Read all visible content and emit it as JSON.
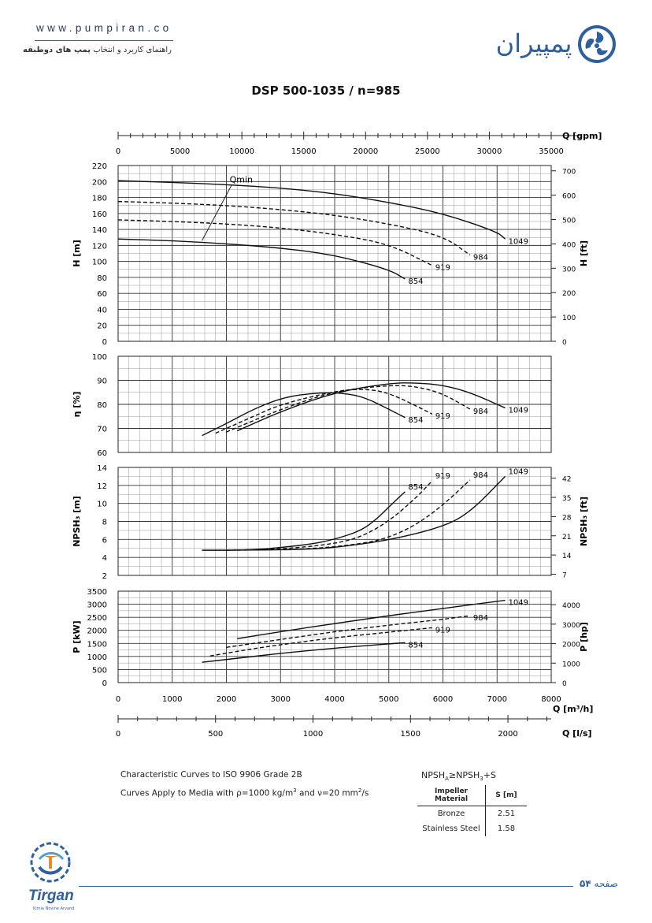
{
  "header": {
    "site_url": "www.pumpiran.co",
    "tagline_plain": "راهنمای کاربرد و انتخاب ",
    "tagline_bold": "پمپ های دوطبقه",
    "brand_name": "پمپیران"
  },
  "colors": {
    "accent": "#2f5f9c",
    "curve": "#111111",
    "grid": "#444444"
  },
  "chart_data": {
    "type": "line",
    "title": "DSP 500-1035 / n=985",
    "x_axes": {
      "gpm": {
        "label": "Q [gpm]",
        "range": [
          0,
          35000
        ],
        "ticks": [
          0,
          5000,
          10000,
          15000,
          20000,
          25000,
          30000,
          35000
        ]
      },
      "m3h": {
        "label": "Q [m³/h]",
        "range": [
          0,
          8000
        ],
        "ticks": [
          0,
          1000,
          2000,
          3000,
          4000,
          5000,
          6000,
          7000,
          8000
        ]
      },
      "ls": {
        "label": "Q [l/s]",
        "range": [
          0,
          2222
        ],
        "ticks": [
          0,
          500,
          1000,
          1500,
          2000
        ]
      }
    },
    "panels": [
      {
        "id": "head",
        "ylabel": "H [m]",
        "ylim": [
          0,
          220
        ],
        "yticks": [
          0,
          20,
          40,
          60,
          80,
          100,
          120,
          140,
          160,
          180,
          200,
          220
        ],
        "ylabel_right": "H [ft]",
        "yticks_right": [
          0,
          100,
          200,
          300,
          400,
          500,
          600,
          700
        ],
        "annotation": "Qmin",
        "series": [
          {
            "name": "1049",
            "dashed": false,
            "x": [
              0,
              1000,
              2000,
              3000,
              4000,
              5000,
              6000,
              7000,
              7150
            ],
            "y": [
              201,
              199,
              196,
              192,
              185,
              174,
              160,
              137,
              128
            ]
          },
          {
            "name": "984",
            "dashed": true,
            "x": [
              0,
              1000,
              2000,
              3000,
              4000,
              5000,
              6000,
              6500
            ],
            "y": [
              175,
              173,
              170,
              165,
              158,
              147,
              132,
              108
            ]
          },
          {
            "name": "919",
            "dashed": true,
            "x": [
              0,
              1000,
              2000,
              3000,
              4000,
              5000,
              5800
            ],
            "y": [
              152,
              150,
              147,
              142,
              134,
              122,
              95
            ]
          },
          {
            "name": "854",
            "dashed": false,
            "x": [
              0,
              1000,
              2000,
              3000,
              4000,
              5000,
              5300
            ],
            "y": [
              128,
              126,
              122,
              117,
              108,
              90,
              78
            ]
          }
        ]
      },
      {
        "id": "efficiency",
        "ylabel": "η [%]",
        "ylim": [
          60,
          100
        ],
        "yticks": [
          60,
          70,
          80,
          90,
          100
        ],
        "series": [
          {
            "name": "1049",
            "dashed": false,
            "x": [
              2200,
              3000,
              4000,
              5000,
              5500,
              6000,
              6500,
              7150
            ],
            "y": [
              69,
              77,
              85,
              88.8,
              89,
              88,
              85,
              78.5
            ]
          },
          {
            "name": "984",
            "dashed": true,
            "x": [
              2000,
              3000,
              4000,
              5000,
              5500,
              6000,
              6500
            ],
            "y": [
              68.5,
              78,
              85.5,
              88,
              87.5,
              84.5,
              78
            ]
          },
          {
            "name": "919",
            "dashed": true,
            "x": [
              1800,
              2500,
              3000,
              4000,
              4500,
              5000,
              5800
            ],
            "y": [
              68,
              75,
              80,
              85.5,
              86.5,
              85,
              76
            ]
          },
          {
            "name": "854",
            "dashed": false,
            "x": [
              1550,
              2000,
              2500,
              3000,
              3500,
              4000,
              4500,
              5000,
              5300
            ],
            "y": [
              67,
              72,
              78,
              82.5,
              84.5,
              85,
              83.5,
              78,
              74.5
            ]
          }
        ]
      },
      {
        "id": "npsh",
        "ylabel": "NPSH₃ [m]",
        "ylim": [
          2,
          14
        ],
        "yticks": [
          2,
          4,
          6,
          8,
          10,
          12,
          14
        ],
        "ylabel_right": "NPSH₃ [ft]",
        "yticks_right": [
          7,
          14,
          21,
          28,
          35,
          42
        ],
        "series": [
          {
            "name": "1049",
            "dashed": false,
            "x": [
              1550,
              2500,
              3500,
              4000,
              5000,
              6000,
              6500,
              7150
            ],
            "y": [
              4.8,
              4.8,
              4.9,
              5.1,
              5.9,
              7.4,
              9.0,
              13.0
            ]
          },
          {
            "name": "984",
            "dashed": true,
            "x": [
              2200,
              3500,
              4500,
              5000,
              5500,
              6000,
              6500
            ],
            "y": [
              4.8,
              4.9,
              5.5,
              6.2,
              7.6,
              9.8,
              12.6
            ]
          },
          {
            "name": "919",
            "dashed": true,
            "x": [
              2000,
              3000,
              4000,
              4500,
              5000,
              5500,
              5800
            ],
            "y": [
              4.8,
              4.9,
              5.5,
              6.3,
              8.0,
              10.6,
              12.5
            ]
          },
          {
            "name": "854",
            "dashed": false,
            "x": [
              1550,
              2500,
              3500,
              4000,
              4500,
              4800,
              5000,
              5300
            ],
            "y": [
              4.8,
              4.8,
              5.4,
              6.0,
              7.0,
              8.4,
              9.6,
              11.3
            ]
          }
        ]
      },
      {
        "id": "power",
        "ylabel": "P [kW]",
        "ylim": [
          0,
          3500
        ],
        "yticks": [
          0,
          500,
          1000,
          1500,
          2000,
          2500,
          3000,
          3500
        ],
        "ylabel_right": "P [hp]",
        "yticks_right": [
          0,
          1000,
          2000,
          3000,
          4000
        ],
        "series": [
          {
            "name": "1049",
            "dashed": false,
            "x": [
              2200,
              3000,
              4000,
              5000,
              6000,
              7150
            ],
            "y": [
              1680,
              1950,
              2260,
              2560,
              2840,
              3150
            ]
          },
          {
            "name": "984",
            "dashed": true,
            "x": [
              2000,
              3000,
              4000,
              5000,
              6000,
              6500
            ],
            "y": [
              1350,
              1650,
              1950,
              2200,
              2420,
              2560
            ]
          },
          {
            "name": "919",
            "dashed": true,
            "x": [
              1700,
              2500,
              3000,
              4000,
              5000,
              5800
            ],
            "y": [
              1020,
              1300,
              1450,
              1720,
              1930,
              2100
            ]
          },
          {
            "name": "854",
            "dashed": false,
            "x": [
              1550,
              2500,
              3000,
              4000,
              5000,
              5300
            ],
            "y": [
              780,
              1000,
              1120,
              1320,
              1480,
              1530
            ]
          }
        ]
      }
    ]
  },
  "notes": {
    "line1": "Characteristic Curves to ISO 9906 Grade 2B",
    "line2_a": "Curves Apply to Media with  ρ=1000 kg/m",
    "line2_b": "3",
    "line2_c": " and ν=20 mm",
    "line2_d": "2",
    "line2_e": "/s"
  },
  "npsh_margin": {
    "formula_a": "NPSH",
    "formula_sub_a": "A",
    "formula_b": "≥NPSH",
    "formula_sub_b": "3",
    "formula_c": "+S",
    "col1": "Impeller Material",
    "col2": "S [m]",
    "rows": [
      {
        "material": "Bronze",
        "s": "2.51"
      },
      {
        "material": "Stainless Steel",
        "s": "1.58"
      }
    ]
  },
  "footer": {
    "page_word": "صفحه",
    "page_number": "۵۴",
    "partner_logo": "Tirgan",
    "partner_sub": "Kimia Novine Arvand"
  }
}
